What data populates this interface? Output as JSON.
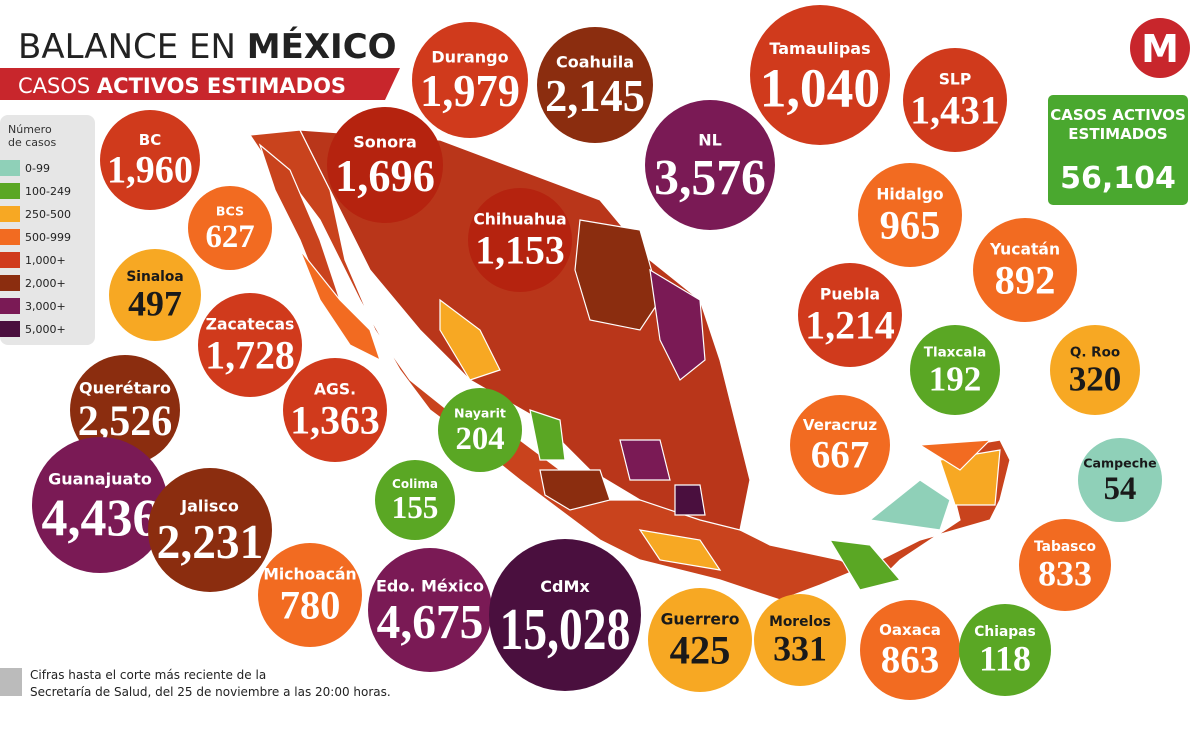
{
  "header": {
    "title_light": "BALANCE EN",
    "title_bold": "MÉXICO",
    "subtitle_light": "CASOS",
    "subtitle_bold": "ACTIVOS ESTIMADOS",
    "logo": "M"
  },
  "legend": {
    "title": "Número de casos",
    "items": [
      {
        "label": "0-99",
        "color": "#8fd0b8"
      },
      {
        "label": "100-249",
        "color": "#5aa724"
      },
      {
        "label": "250-500",
        "color": "#f7a823"
      },
      {
        "label": "500-999",
        "color": "#f26b21"
      },
      {
        "label": "1,000+",
        "color": "#d03a1c"
      },
      {
        "label": "2,000+",
        "color": "#8b2d0f"
      },
      {
        "label": "3,000+",
        "color": "#7a1a55"
      },
      {
        "label": "5,000+",
        "color": "#4a0f3e"
      }
    ]
  },
  "total": {
    "label": "CASOS ACTIVOS ESTIMADOS",
    "value": "56,104"
  },
  "states": [
    {
      "name": "BC",
      "cases": "1,960",
      "color": "#d03a1c"
    },
    {
      "name": "BCS",
      "cases": "627",
      "color": "#f26b21"
    },
    {
      "name": "Sinaloa",
      "cases": "497",
      "color": "#f7a823"
    },
    {
      "name": "Zacatecas",
      "cases": "1,728",
      "color": "#d03a1c"
    },
    {
      "name": "Querétaro",
      "cases": "2,526",
      "color": "#8b2d0f"
    },
    {
      "name": "AGS.",
      "cases": "1,363",
      "color": "#d03a1c"
    },
    {
      "name": "Guanajuato",
      "cases": "4,436",
      "color": "#7a1a55"
    },
    {
      "name": "Jalisco",
      "cases": "2,231",
      "color": "#8b2d0f"
    },
    {
      "name": "Michoacán",
      "cases": "780",
      "color": "#f26b21"
    },
    {
      "name": "Edo. México",
      "cases": "4,675",
      "color": "#7a1a55"
    },
    {
      "name": "CdMx",
      "cases": "15,028",
      "color": "#4a0f3e"
    },
    {
      "name": "Guerrero",
      "cases": "425",
      "color": "#f7a823"
    },
    {
      "name": "Morelos",
      "cases": "331",
      "color": "#f7a823"
    },
    {
      "name": "Oaxaca",
      "cases": "863",
      "color": "#f26b21"
    },
    {
      "name": "Chiapas",
      "cases": "118",
      "color": "#5aa724"
    },
    {
      "name": "Tabasco",
      "cases": "833",
      "color": "#f26b21"
    },
    {
      "name": "Campeche",
      "cases": "54",
      "color": "#8fd0b8"
    },
    {
      "name": "Q. Roo",
      "cases": "320",
      "color": "#f7a823"
    },
    {
      "name": "Yucatán",
      "cases": "892",
      "color": "#f26b21"
    },
    {
      "name": "Tlaxcala",
      "cases": "192",
      "color": "#5aa724"
    },
    {
      "name": "Veracruz",
      "cases": "667",
      "color": "#f26b21"
    },
    {
      "name": "Puebla",
      "cases": "1,214",
      "color": "#d03a1c"
    },
    {
      "name": "Hidalgo",
      "cases": "965",
      "color": "#f26b21"
    },
    {
      "name": "SLP",
      "cases": "1,431",
      "color": "#d03a1c"
    },
    {
      "name": "Tamaulipas",
      "cases": "1,040",
      "color": "#d03a1c"
    },
    {
      "name": "NL",
      "cases": "3,576",
      "color": "#7a1a55"
    },
    {
      "name": "Coahuila",
      "cases": "2,145",
      "color": "#8b2d0f"
    },
    {
      "name": "Durango",
      "cases": "1,979",
      "color": "#d03a1c"
    },
    {
      "name": "Sonora",
      "cases": "1,696",
      "color": "#b5230f"
    },
    {
      "name": "Chihuahua",
      "cases": "1,153",
      "color": "#b5230f"
    },
    {
      "name": "Nayarit",
      "cases": "204",
      "color": "#5aa724"
    },
    {
      "name": "Colima",
      "cases": "155",
      "color": "#5aa724"
    }
  ],
  "footnote": [
    "Cifras hasta el corte más reciente de la",
    "Secretaría de Salud, del 25 de noviembre a las 20:00 horas."
  ]
}
